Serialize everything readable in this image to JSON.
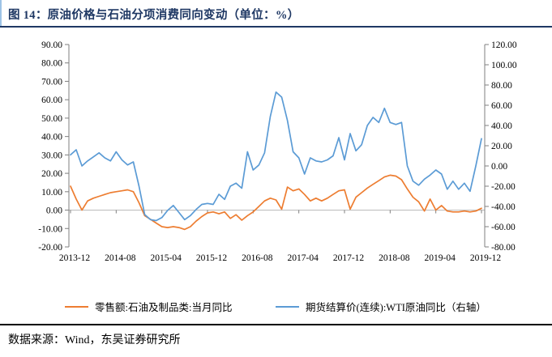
{
  "figure": {
    "title": "图 14：原油价格与石油分项消费同向变动（单位：%）",
    "source": "数据来源：Wind，东吴证券研究所"
  },
  "colors": {
    "title_navy": "#1f3864",
    "retail_orange": "#ED7D31",
    "wti_blue": "#5B9BD5",
    "axis_gray": "#7f7f7f",
    "zero_line_gray": "#bfbfbf"
  },
  "chart_data": {
    "type": "line",
    "x_start": "2013-12",
    "x_freq": "monthly",
    "x_tick_labels": [
      "2013-12",
      "2014-08",
      "2015-04",
      "2015-12",
      "2016-08",
      "2017-04",
      "2017-12",
      "2018-08",
      "2019-04",
      "2019-12"
    ],
    "x_tick_indices": [
      0,
      8,
      16,
      24,
      32,
      40,
      48,
      56,
      64,
      72
    ],
    "left_axis": {
      "min": -20,
      "max": 90,
      "tick_labels": [
        "90.00",
        "80.00",
        "70.00",
        "60.00",
        "50.00",
        "40.00",
        "30.00",
        "20.00",
        "10.00",
        "0.00",
        "-10.00",
        "-20.00"
      ]
    },
    "right_axis": {
      "min": -80,
      "max": 120,
      "tick_labels": [
        "120.00",
        "100.00",
        "80.00",
        "60.00",
        "40.00",
        "20.00",
        "0.00",
        "-20.00",
        "-40.00",
        "-60.00",
        "-80.00"
      ]
    },
    "legend_position": "bottom",
    "grid": "zero-line-only",
    "series": [
      {
        "name": "零售额:石油及制品类:当月同比",
        "axis": "left",
        "color": "#ED7D31",
        "values": [
          13,
          6,
          0,
          5,
          6.5,
          7.5,
          8.5,
          9.5,
          10,
          10.5,
          11,
          10,
          4,
          -3,
          -5,
          -7,
          -9,
          -9.5,
          -9,
          -9.5,
          -10.5,
          -9,
          -6,
          -3.5,
          -1.5,
          -1,
          -2,
          -1,
          -4.5,
          -2.5,
          -5.5,
          -3,
          -1,
          2,
          5,
          6.5,
          5.5,
          0.5,
          12.5,
          10.5,
          11.5,
          8.5,
          5,
          6.5,
          5,
          6.5,
          8.5,
          10.5,
          11,
          0.5,
          7,
          9.5,
          12,
          14,
          16,
          18,
          19,
          18.5,
          16.5,
          11.5,
          7,
          4.5,
          -0.5,
          6,
          0,
          2.5,
          -0.5,
          -1,
          -1,
          -0.5,
          -1,
          -0.5,
          1
        ]
      },
      {
        "name": "期货结算价(连续):WTI原油同比（右轴）",
        "axis": "right",
        "color": "#5B9BD5",
        "values": [
          11,
          16,
          0,
          5,
          9,
          13,
          8,
          5,
          14,
          6,
          1,
          4,
          -20,
          -48,
          -53,
          -54,
          -51,
          -44,
          -39,
          -46,
          -53,
          -49,
          -43,
          -38,
          -37,
          -38,
          -28,
          -33,
          -20,
          -17,
          -22,
          14,
          -4,
          1,
          13,
          49,
          73,
          68,
          45,
          14,
          8,
          -8,
          8,
          5,
          4,
          6,
          10,
          28,
          6,
          32,
          15,
          21,
          40,
          48,
          43,
          57,
          43,
          41,
          43,
          0,
          -15,
          -19,
          -13,
          -9,
          -4,
          -8,
          -23,
          -15,
          -23,
          -17,
          -25,
          0,
          27
        ]
      }
    ]
  }
}
